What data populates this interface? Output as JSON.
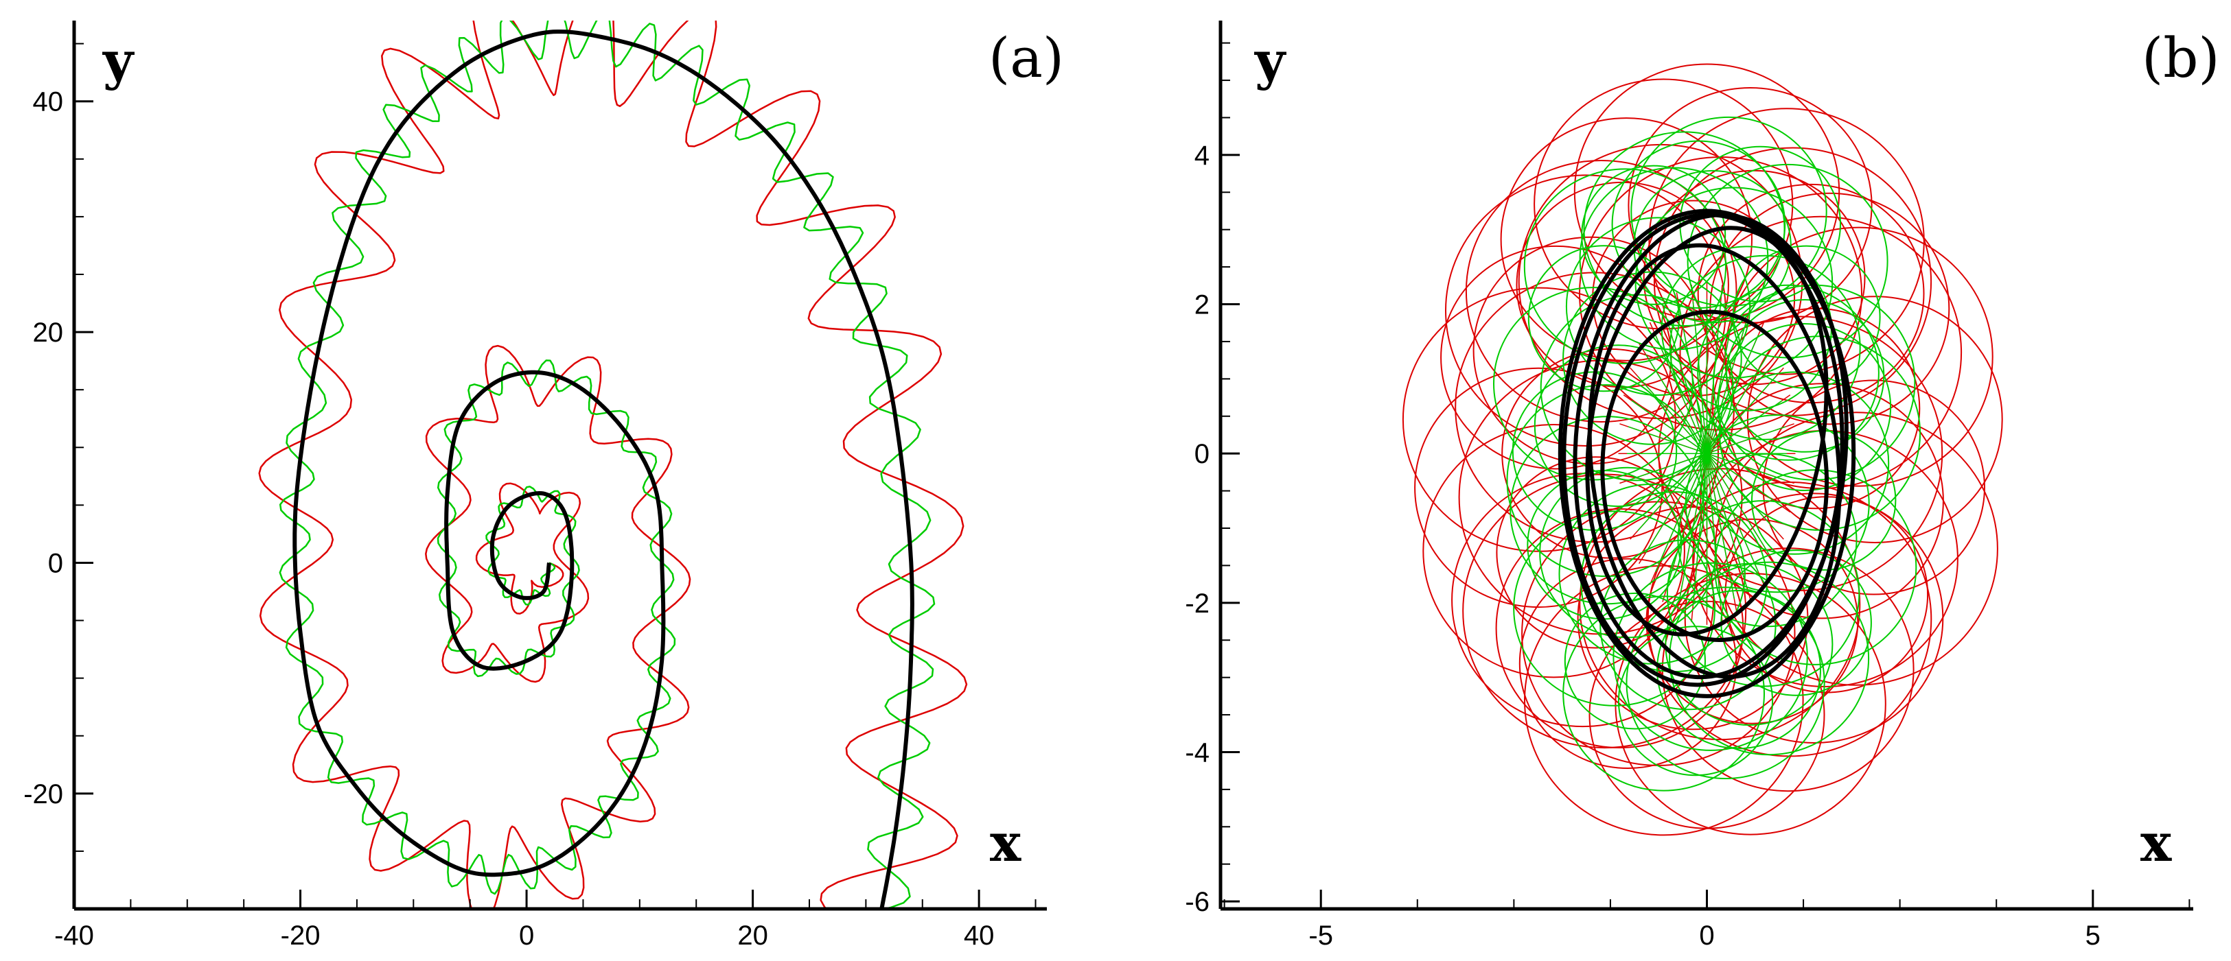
{
  "chart_data": [
    {
      "type": "line",
      "panel_label": "(a)",
      "xlabel": "x",
      "ylabel": "y",
      "xlim": [
        -40,
        46
      ],
      "ylim": [
        -30,
        47
      ],
      "xticks": [
        -40,
        -20,
        0,
        20,
        40
      ],
      "yticks": [
        -20,
        0,
        20,
        40
      ],
      "xtick_labels": [
        "-40",
        "-20",
        "0",
        "20",
        "40"
      ],
      "ytick_labels": [
        "-20",
        "0",
        "20",
        "40"
      ],
      "grid": false,
      "series": [
        {
          "color": "#000000",
          "style": "thick spiral trajectory",
          "points": [
            [
              2,
              0
            ],
            [
              1.5,
              -2.5
            ],
            [
              -0.5,
              -3
            ],
            [
              -2.5,
              -1.5
            ],
            [
              -3,
              2
            ],
            [
              -1.5,
              5
            ],
            [
              1.5,
              6
            ],
            [
              3.5,
              4
            ],
            [
              4,
              -1
            ],
            [
              3,
              -6
            ],
            [
              0,
              -8.5
            ],
            [
              -4,
              -9
            ],
            [
              -6.5,
              -6
            ],
            [
              -7,
              0
            ],
            [
              -7,
              6
            ],
            [
              -6,
              12
            ],
            [
              -3,
              15.5
            ],
            [
              1,
              16.5
            ],
            [
              5,
              15
            ],
            [
              9,
              11
            ],
            [
              11.5,
              6
            ],
            [
              12,
              -1
            ],
            [
              12,
              -8
            ],
            [
              11,
              -14
            ],
            [
              9,
              -19
            ],
            [
              6,
              -23
            ],
            [
              2,
              -26
            ],
            [
              -2,
              -27
            ],
            [
              -6,
              -26.5
            ],
            [
              -11,
              -23.5
            ],
            [
              -15,
              -19.5
            ],
            [
              -18.5,
              -14
            ],
            [
              -20,
              -6
            ],
            [
              -20.5,
              2
            ],
            [
              -20,
              9
            ],
            [
              -18.5,
              18
            ],
            [
              -16.5,
              26
            ],
            [
              -14,
              33
            ],
            [
              -11,
              38
            ],
            [
              -7,
              42
            ],
            [
              -3,
              44.5
            ],
            [
              2,
              46
            ],
            [
              7,
              45.5
            ],
            [
              12,
              44
            ],
            [
              17,
              41
            ],
            [
              22,
              36.5
            ],
            [
              26,
              31
            ],
            [
              29,
              25
            ],
            [
              31.5,
              18
            ],
            [
              33,
              10
            ],
            [
              34,
              0
            ],
            [
              34,
              -8
            ],
            [
              33.5,
              -16
            ],
            [
              32.5,
              -24
            ],
            [
              31,
              -32
            ]
          ]
        },
        {
          "color": "#00cc00",
          "style": "thin wavy trajectory",
          "amplitude": 0.9,
          "waves": 70,
          "points": [
            [
              2,
              0
            ],
            [
              1.5,
              -2.5
            ],
            [
              -0.5,
              -3
            ],
            [
              -2.5,
              -1.5
            ],
            [
              -3,
              2
            ],
            [
              -1.5,
              5
            ],
            [
              1.5,
              6
            ],
            [
              3.5,
              4
            ],
            [
              4,
              -1
            ],
            [
              3,
              -6
            ],
            [
              0,
              -8.5
            ],
            [
              -4,
              -9
            ],
            [
              -6.5,
              -6
            ],
            [
              -7,
              0
            ],
            [
              -7,
              6
            ],
            [
              -6,
              12
            ],
            [
              -3,
              15.5
            ],
            [
              1,
              16.5
            ],
            [
              5,
              15
            ],
            [
              9,
              11
            ],
            [
              11.5,
              6
            ],
            [
              12,
              -1
            ],
            [
              12,
              -8
            ],
            [
              11,
              -14
            ],
            [
              9,
              -19
            ],
            [
              6,
              -23
            ],
            [
              2,
              -26
            ],
            [
              -2,
              -27
            ],
            [
              -6,
              -26.5
            ],
            [
              -11,
              -23.5
            ],
            [
              -15,
              -19.5
            ],
            [
              -18.5,
              -14
            ],
            [
              -20,
              -6
            ],
            [
              -20.5,
              2
            ],
            [
              -20,
              9
            ],
            [
              -18.5,
              18
            ],
            [
              -16.5,
              26
            ],
            [
              -14,
              33
            ],
            [
              -11,
              38
            ],
            [
              -7,
              42
            ],
            [
              -3,
              44.5
            ],
            [
              2,
              46
            ],
            [
              7,
              45.5
            ],
            [
              12,
              44
            ],
            [
              17,
              41
            ],
            [
              22,
              36.5
            ],
            [
              26,
              31
            ],
            [
              29,
              25
            ],
            [
              31.5,
              18
            ],
            [
              33,
              10
            ],
            [
              34,
              0
            ],
            [
              34,
              -8
            ],
            [
              33.5,
              -16
            ],
            [
              32.5,
              -24
            ],
            [
              31,
              -32
            ]
          ]
        },
        {
          "color": "#dd0000",
          "style": "thin looping trajectory",
          "amplitude": 2.2,
          "waves": 34,
          "points": [
            [
              2,
              0
            ],
            [
              1.5,
              -2.5
            ],
            [
              -0.5,
              -3
            ],
            [
              -2.5,
              -1.5
            ],
            [
              -3,
              2
            ],
            [
              -1.5,
              5
            ],
            [
              1.5,
              6
            ],
            [
              3.5,
              4
            ],
            [
              4,
              -1
            ],
            [
              3,
              -6
            ],
            [
              0,
              -8.5
            ],
            [
              -4,
              -9
            ],
            [
              -6.5,
              -6
            ],
            [
              -7,
              0
            ],
            [
              -7,
              6
            ],
            [
              -6,
              12
            ],
            [
              -3,
              15.5
            ],
            [
              1,
              16.5
            ],
            [
              5,
              15
            ],
            [
              9,
              11
            ],
            [
              11.5,
              6
            ],
            [
              12,
              -1
            ],
            [
              12,
              -8
            ],
            [
              11,
              -14
            ],
            [
              9,
              -19
            ],
            [
              6,
              -23
            ],
            [
              2,
              -26
            ],
            [
              -2,
              -27
            ],
            [
              -6,
              -26.5
            ],
            [
              -11,
              -23.5
            ],
            [
              -15,
              -19.5
            ],
            [
              -18.5,
              -14
            ],
            [
              -20,
              -6
            ],
            [
              -20.5,
              2
            ],
            [
              -20,
              9
            ],
            [
              -18.5,
              18
            ],
            [
              -16.5,
              26
            ],
            [
              -14,
              33
            ],
            [
              -11,
              38
            ],
            [
              -7,
              42
            ],
            [
              -3,
              44.5
            ],
            [
              2,
              46
            ],
            [
              7,
              45.5
            ],
            [
              12,
              44
            ],
            [
              17,
              41
            ],
            [
              22,
              36.5
            ],
            [
              26,
              31
            ],
            [
              29,
              25
            ],
            [
              31.5,
              18
            ],
            [
              33,
              10
            ],
            [
              34,
              0
            ],
            [
              34,
              -8
            ],
            [
              33.5,
              -16
            ],
            [
              32.5,
              -24
            ],
            [
              31,
              -32
            ]
          ]
        }
      ]
    },
    {
      "type": "line",
      "panel_label": "(b)",
      "xlabel": "x",
      "ylabel": "y",
      "xlim": [
        -6.3,
        6.3
      ],
      "ylim": [
        -6.1,
        5.8
      ],
      "xticks": [
        -5,
        0,
        5
      ],
      "yticks": [
        -6,
        -4,
        -2,
        0,
        2,
        4
      ],
      "xtick_labels": [
        "-5",
        "0",
        "5"
      ],
      "ytick_labels": [
        "-6",
        "-4",
        "-2",
        "0",
        "2",
        "4"
      ],
      "grid": false,
      "series": [
        {
          "color": "#dd0000",
          "style": "dense epicyclic loops",
          "extent_x": [
            -3.8,
            3.8
          ],
          "extent_y": [
            -5.1,
            5.1
          ],
          "loops": 48
        },
        {
          "color": "#00cc00",
          "style": "dense epicyclic loops",
          "extent_x": [
            -2.7,
            2.7
          ],
          "extent_y": [
            -4.6,
            4.6
          ],
          "loops": 48
        },
        {
          "color": "#000000",
          "style": "thick closed orbits",
          "orbits": [
            {
              "cx": 0,
              "cy": 0,
              "rx": 1.9,
              "ry": 3.25,
              "rot": 0
            },
            {
              "cx": 0.05,
              "cy": 0.1,
              "rx": 1.75,
              "ry": 3.1,
              "rot": 4
            },
            {
              "cx": 0.1,
              "cy": -0.1,
              "rx": 1.6,
              "ry": 2.9,
              "rot": -6
            },
            {
              "cx": 0,
              "cy": 0.3,
              "rx": 1.5,
              "ry": 2.75,
              "rot": 10
            },
            {
              "cx": 0.1,
              "cy": -0.3,
              "rx": 1.45,
              "ry": 2.2,
              "rot": -3
            },
            {
              "cx": -0.05,
              "cy": 0.05,
              "rx": 1.8,
              "ry": 3.15,
              "rot": 2
            }
          ]
        }
      ]
    }
  ]
}
